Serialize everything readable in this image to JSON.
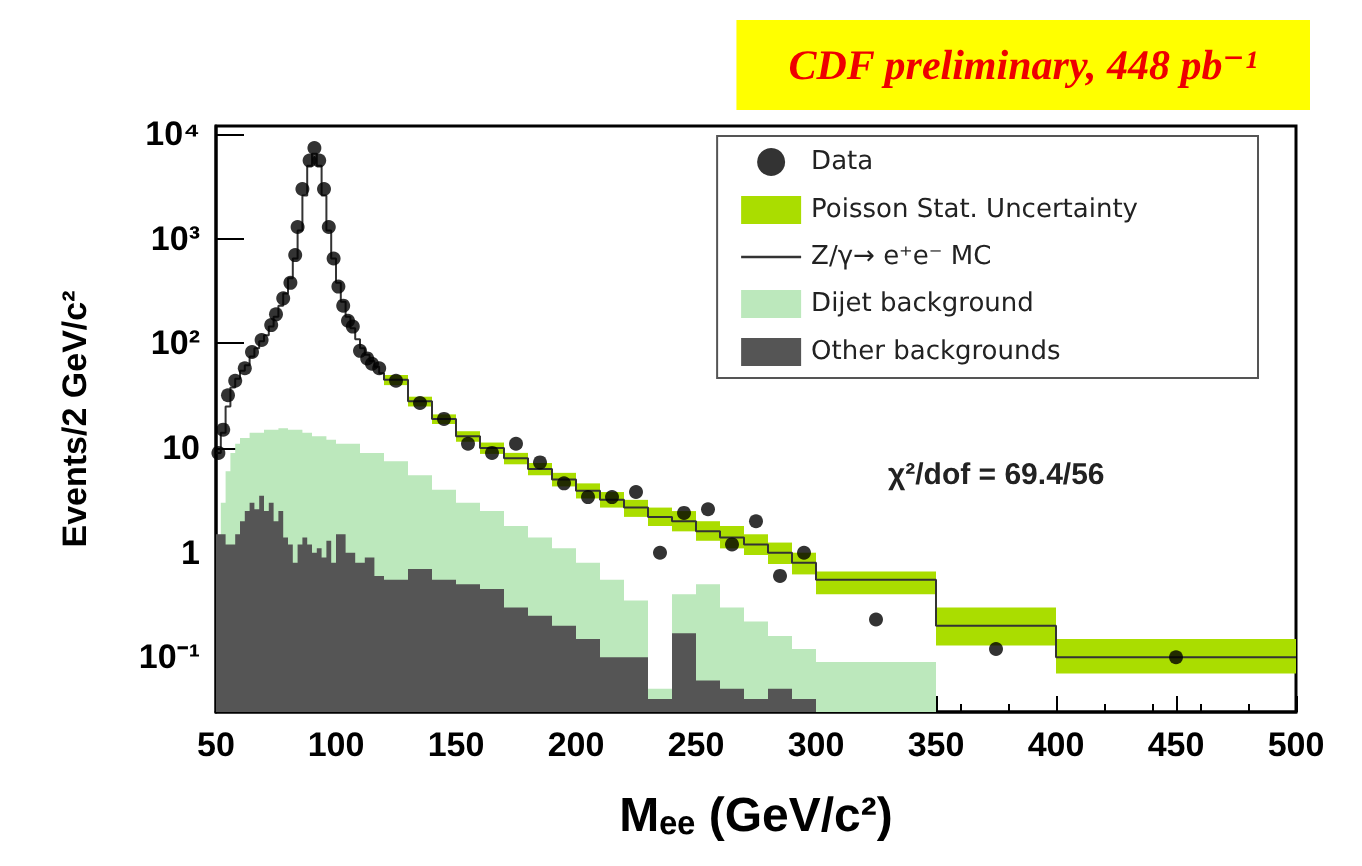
{
  "chart_data": {
    "type": "step",
    "title": "CDF preliminary, 448 pb⁻¹",
    "xlabel": "Mₑₑ (GeV/c²)",
    "ylabel": "Events/2 GeV/c²",
    "annotations": [
      "χ²/dof = 69.4/56",
      "Poisson Stat. Uncertainty"
    ],
    "xlim": [
      50,
      500
    ],
    "xticks": [
      50,
      100,
      150,
      200,
      250,
      300,
      350,
      400,
      450,
      500
    ],
    "ylim": [
      0.03,
      12000
    ],
    "yticks": [
      {
        "value": 0.1,
        "label": "10⁻¹"
      },
      1,
      10,
      {
        "value": 100,
        "label": "10²"
      },
      {
        "value": 1000,
        "label": "10³"
      },
      {
        "value": 10000,
        "label": "10⁴"
      }
    ],
    "log": true,
    "grid": false,
    "legend": "top right",
    "series": [
      {
        "name": "Data",
        "type": "scatter",
        "marker": "circle",
        "color": "#000000",
        "x": [
          51,
          53,
          55,
          58,
          62,
          65,
          69,
          73,
          75,
          78,
          81,
          83,
          84,
          86,
          89,
          91,
          93,
          95,
          97,
          99,
          101,
          103,
          105,
          107,
          110,
          113,
          115,
          118,
          125,
          135,
          145,
          155,
          165,
          175,
          185,
          195,
          205,
          215,
          225,
          235,
          245,
          255,
          265,
          275,
          285,
          295,
          325,
          375,
          450
        ],
        "values": [
          9,
          15,
          32,
          44,
          58,
          83,
          108,
          150,
          190,
          270,
          380,
          700,
          1300,
          3000,
          5600,
          7400,
          5600,
          3000,
          1300,
          650,
          350,
          230,
          165,
          145,
          85,
          72,
          64,
          58,
          44,
          27,
          19,
          11,
          9,
          11,
          7.3,
          4.6,
          3.4,
          3.4,
          3.8,
          1,
          2.4,
          2.6,
          1.2,
          2,
          0.6,
          1,
          0.23,
          0.12,
          0.1
        ]
      },
      {
        "name": "Z/γ→ e⁺e⁻ MC",
        "type": "step",
        "color": "#333333",
        "x": [
          50,
          52,
          54,
          56,
          58,
          60,
          62,
          64,
          66,
          68,
          70,
          72,
          74,
          76,
          78,
          80,
          82,
          84,
          86,
          88,
          90,
          92,
          94,
          96,
          98,
          100,
          102,
          104,
          106,
          108,
          110,
          112,
          114,
          116,
          118,
          120,
          130,
          140,
          150,
          160,
          170,
          180,
          190,
          200,
          210,
          220,
          230,
          240,
          250,
          260,
          270,
          280,
          290,
          300,
          350,
          400,
          500
        ],
        "values": [
          9,
          14,
          25,
          38,
          46,
          55,
          62,
          75,
          90,
          105,
          120,
          145,
          180,
          230,
          300,
          420,
          650,
          1200,
          2600,
          5000,
          6500,
          5000,
          2600,
          1200,
          650,
          380,
          250,
          180,
          140,
          110,
          90,
          78,
          68,
          60,
          52,
          45,
          28,
          19,
          13,
          10,
          8,
          6.3,
          5,
          3.9,
          3.2,
          2.7,
          2.2,
          2,
          1.6,
          1.4,
          1.2,
          1,
          0.8,
          0.55,
          0.2,
          0.1,
          0.1
        ],
        "lower": [
          null,
          null,
          null,
          null,
          null,
          null,
          null,
          null,
          null,
          null,
          null,
          null,
          null,
          null,
          null,
          null,
          null,
          null,
          null,
          null,
          null,
          null,
          null,
          null,
          null,
          null,
          null,
          null,
          null,
          null,
          null,
          null,
          null,
          null,
          null,
          40,
          25,
          17,
          11.5,
          8.8,
          7,
          5.5,
          4.3,
          3.3,
          2.7,
          2.2,
          1.8,
          1.6,
          1.3,
          1.1,
          0.95,
          0.78,
          0.62,
          0.4,
          0.13,
          0.07,
          0.07
        ],
        "upper": [
          null,
          null,
          null,
          null,
          null,
          null,
          null,
          null,
          null,
          null,
          null,
          null,
          null,
          null,
          null,
          null,
          null,
          null,
          null,
          null,
          null,
          null,
          null,
          null,
          null,
          null,
          null,
          null,
          null,
          null,
          null,
          null,
          null,
          null,
          null,
          50,
          31,
          21,
          14.5,
          11.3,
          9,
          7.2,
          5.8,
          4.6,
          3.8,
          3.2,
          2.7,
          2.5,
          2,
          1.8,
          1.5,
          1.25,
          1,
          0.66,
          0.3,
          0.15,
          0.15
        ]
      },
      {
        "name": "Dijet background",
        "type": "area",
        "color": "#bce8bc",
        "x": [
          50,
          52,
          54,
          56,
          58,
          60,
          64,
          70,
          76,
          80,
          86,
          90,
          96,
          100,
          110,
          120,
          130,
          140,
          150,
          160,
          170,
          180,
          190,
          200,
          210,
          220,
          230,
          240,
          250,
          260,
          270,
          280,
          290,
          300,
          350
        ],
        "values": [
          1,
          3,
          6,
          9,
          11,
          12.5,
          14,
          15,
          15.5,
          15,
          14,
          13,
          12,
          11,
          9,
          7.5,
          5.5,
          4,
          3,
          2.5,
          1.8,
          1.4,
          1.1,
          0.8,
          0.55,
          0.35,
          0.05,
          0.4,
          0.5,
          0.3,
          0.22,
          0.16,
          0.12,
          0.09,
          0.09
        ]
      },
      {
        "name": "Other backgrounds",
        "type": "area",
        "color": "#555555",
        "x": [
          50,
          54,
          58,
          60,
          62,
          64,
          66,
          68,
          70,
          72,
          74,
          76,
          78,
          80,
          82,
          84,
          86,
          88,
          90,
          92,
          94,
          96,
          98,
          100,
          104,
          108,
          112,
          116,
          120,
          130,
          140,
          150,
          160,
          170,
          180,
          190,
          200,
          210,
          220,
          230,
          240,
          250,
          260,
          270,
          280,
          290,
          300
        ],
        "values": [
          1.5,
          1.2,
          1.5,
          2,
          2.5,
          3,
          2.6,
          3.5,
          2.5,
          3,
          2,
          2.5,
          1.4,
          1.2,
          0.8,
          1.2,
          1.4,
          1.2,
          1,
          1.1,
          0.9,
          1.3,
          0.8,
          1.5,
          1,
          0.8,
          0.9,
          0.6,
          0.55,
          0.7,
          0.55,
          0.5,
          0.45,
          0.3,
          0.25,
          0.2,
          0.15,
          0.1,
          0.1,
          0.04,
          0.17,
          0.06,
          0.05,
          0.04,
          0.05,
          0.04,
          0.04
        ]
      }
    ]
  }
}
